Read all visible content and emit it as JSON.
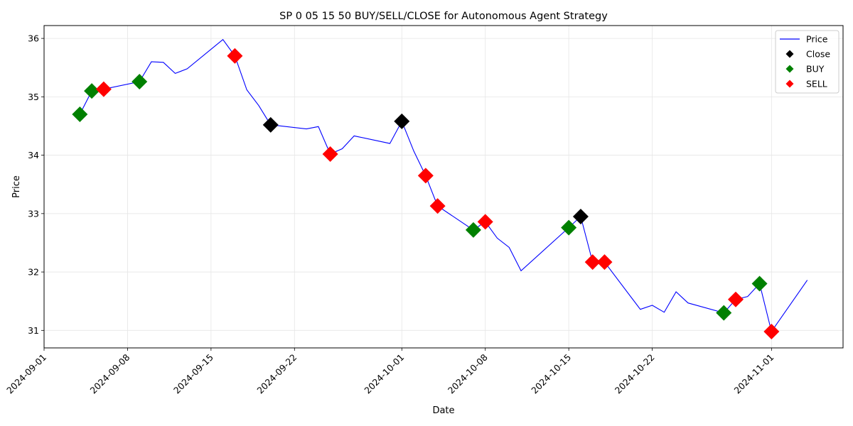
{
  "chart_data": {
    "type": "line",
    "title": "SP 0 05 15 50 BUY/SELL/CLOSE for Autonomous Agent Strategy",
    "xlabel": "Date",
    "ylabel": "Price",
    "xlim": [
      "2024-09-01",
      "2024-11-07"
    ],
    "ylim": [
      30.7,
      36.22
    ],
    "xticks": [
      "2024-09-01",
      "2024-09-08",
      "2024-09-15",
      "2024-09-22",
      "2024-10-01",
      "2024-10-08",
      "2024-10-15",
      "2024-10-22",
      "2024-11-01"
    ],
    "yticks": [
      31,
      32,
      33,
      34,
      35,
      36
    ],
    "grid": true,
    "legend_position": "top-right",
    "colors": {
      "price": "#0000ff",
      "close": "#000000",
      "buy": "#008000",
      "sell": "#ff0000"
    },
    "series": [
      {
        "name": "Price",
        "kind": "line",
        "points": [
          [
            "2024-09-04",
            34.7
          ],
          [
            "2024-09-05",
            35.1
          ],
          [
            "2024-09-06",
            35.13
          ],
          [
            "2024-09-09",
            35.26
          ],
          [
            "2024-09-10",
            35.6
          ],
          [
            "2024-09-11",
            35.59
          ],
          [
            "2024-09-12",
            35.4
          ],
          [
            "2024-09-13",
            35.48
          ],
          [
            "2024-09-16",
            35.98
          ],
          [
            "2024-09-17",
            35.7
          ],
          [
            "2024-09-18",
            35.12
          ],
          [
            "2024-09-19",
            34.85
          ],
          [
            "2024-09-20",
            34.52
          ],
          [
            "2024-09-23",
            34.45
          ],
          [
            "2024-09-24",
            34.49
          ],
          [
            "2024-09-25",
            34.02
          ],
          [
            "2024-09-26",
            34.11
          ],
          [
            "2024-09-27",
            34.33
          ],
          [
            "2024-09-30",
            34.2
          ],
          [
            "2024-10-01",
            34.58
          ],
          [
            "2024-10-02",
            34.07
          ],
          [
            "2024-10-03",
            33.65
          ],
          [
            "2024-10-04",
            33.13
          ],
          [
            "2024-10-07",
            32.72
          ],
          [
            "2024-10-08",
            32.86
          ],
          [
            "2024-10-09",
            32.58
          ],
          [
            "2024-10-10",
            32.42
          ],
          [
            "2024-10-11",
            32.02
          ],
          [
            "2024-10-15",
            32.76
          ],
          [
            "2024-10-16",
            32.95
          ],
          [
            "2024-10-17",
            32.17
          ],
          [
            "2024-10-18",
            32.17
          ],
          [
            "2024-10-21",
            31.36
          ],
          [
            "2024-10-22",
            31.43
          ],
          [
            "2024-10-23",
            31.31
          ],
          [
            "2024-10-24",
            31.66
          ],
          [
            "2024-10-25",
            31.47
          ],
          [
            "2024-10-28",
            31.3
          ],
          [
            "2024-10-29",
            31.53
          ],
          [
            "2024-10-30",
            31.58
          ],
          [
            "2024-10-31",
            31.8
          ],
          [
            "2024-11-01",
            30.98
          ],
          [
            "2024-11-04",
            31.86
          ]
        ]
      },
      {
        "name": "Close",
        "kind": "marker",
        "points": [
          [
            "2024-09-20",
            34.52
          ],
          [
            "2024-10-01",
            34.58
          ],
          [
            "2024-10-16",
            32.95
          ]
        ]
      },
      {
        "name": "BUY",
        "kind": "marker",
        "points": [
          [
            "2024-09-04",
            34.7
          ],
          [
            "2024-09-05",
            35.1
          ],
          [
            "2024-09-09",
            35.26
          ],
          [
            "2024-10-07",
            32.72
          ],
          [
            "2024-10-15",
            32.76
          ],
          [
            "2024-10-28",
            31.3
          ],
          [
            "2024-10-31",
            31.8
          ]
        ]
      },
      {
        "name": "SELL",
        "kind": "marker",
        "points": [
          [
            "2024-09-06",
            35.13
          ],
          [
            "2024-09-17",
            35.7
          ],
          [
            "2024-09-25",
            34.02
          ],
          [
            "2024-10-03",
            33.65
          ],
          [
            "2024-10-04",
            33.13
          ],
          [
            "2024-10-08",
            32.86
          ],
          [
            "2024-10-17",
            32.17
          ],
          [
            "2024-10-18",
            32.17
          ],
          [
            "2024-10-29",
            31.53
          ],
          [
            "2024-11-01",
            30.98
          ]
        ]
      }
    ]
  }
}
